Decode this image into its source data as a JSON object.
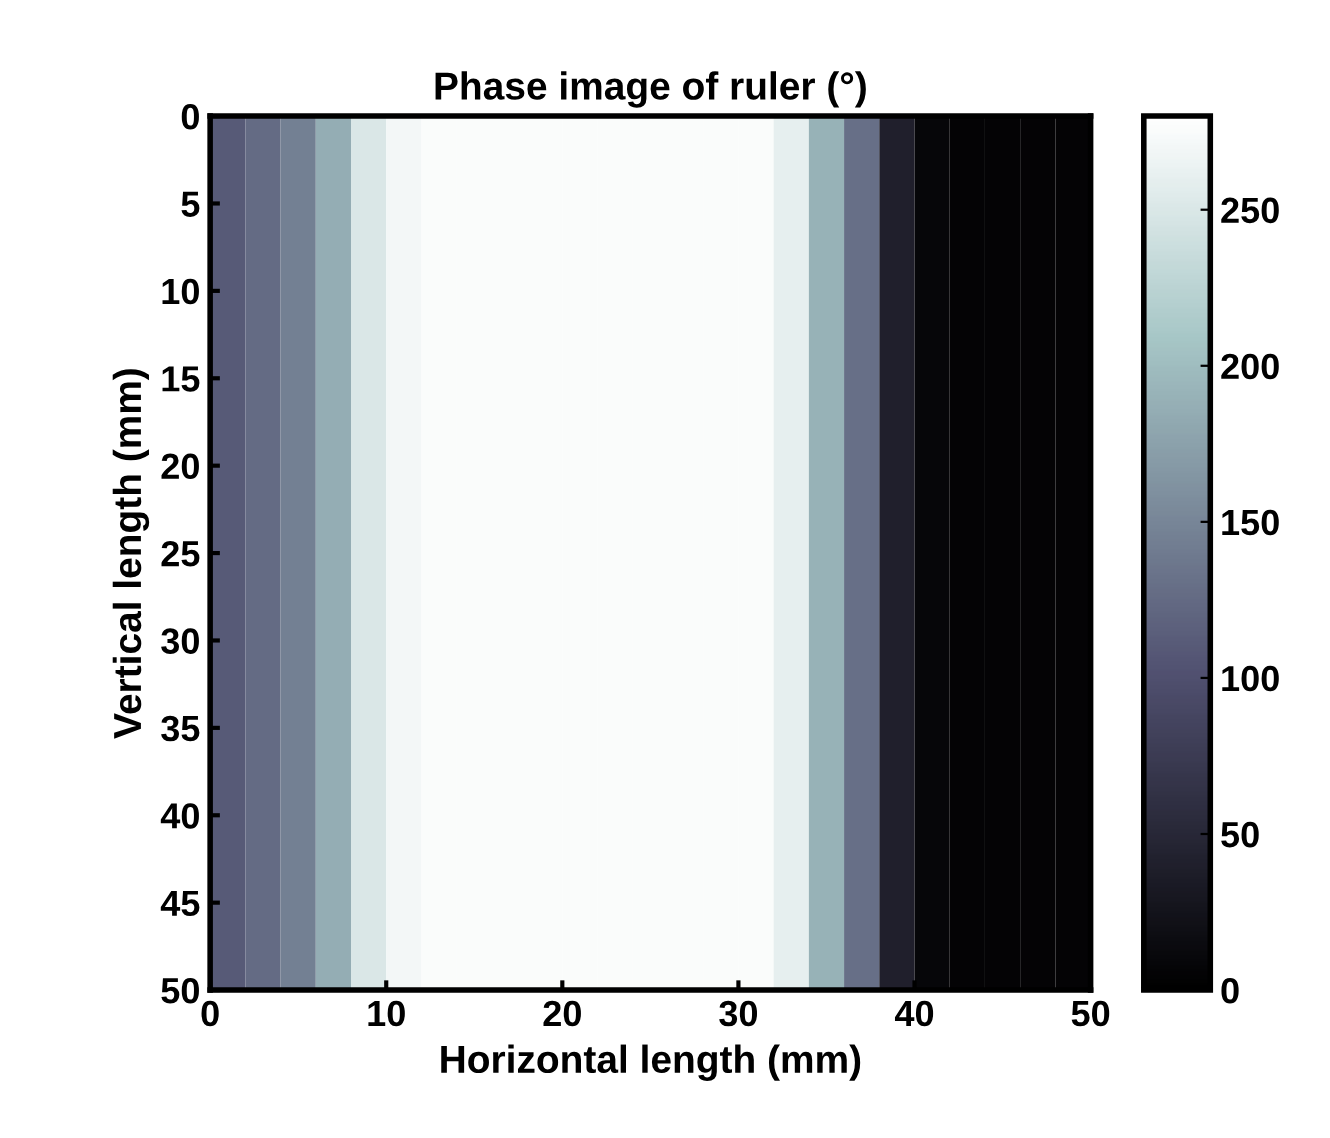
{
  "chart_data": {
    "type": "heatmap",
    "title": "Phase image of ruler (°)",
    "xlabel": "Horizontal length (mm)",
    "ylabel": "Vertical length (mm)",
    "x": [
      1,
      3,
      5,
      7,
      9,
      11,
      13,
      15,
      17,
      19,
      21,
      23,
      25,
      27,
      29,
      31,
      33,
      35,
      37,
      39,
      41,
      43,
      45,
      47,
      49
    ],
    "cells": [
      [
        110,
        125,
        145,
        185,
        250,
        270,
        275,
        275,
        275,
        275,
        275,
        275,
        275,
        275,
        275,
        275,
        260,
        190,
        130,
        40,
        8,
        5,
        5,
        5,
        5
      ]
    ],
    "xlim": [
      0,
      50
    ],
    "ylim": [
      50,
      0
    ],
    "xticks": [
      0,
      10,
      20,
      30,
      40,
      50
    ],
    "yticks": [
      0,
      5,
      10,
      15,
      20,
      25,
      30,
      35,
      40,
      45,
      50
    ],
    "clim": [
      0,
      280
    ],
    "cticks": [
      0,
      50,
      100,
      150,
      200,
      250
    ],
    "grid": false
  }
}
